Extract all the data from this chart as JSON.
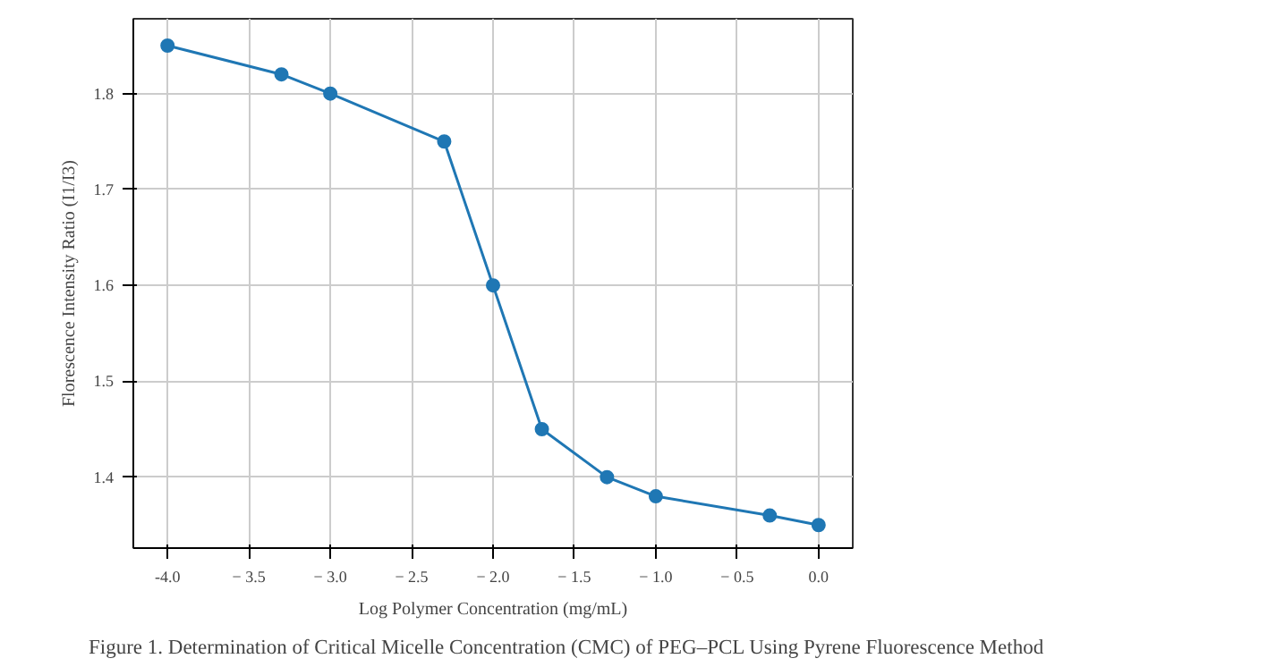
{
  "chart_data": {
    "type": "line",
    "xlabel": "Log Polymer Concentration (mg/mL)",
    "ylabel": "Florescence Intensity Ratio (I1/I3)",
    "x": [
      -4.0,
      -3.3,
      -3.0,
      -2.3,
      -2.0,
      -1.7,
      -1.3,
      -1.0,
      -0.3,
      0.0
    ],
    "series": [
      {
        "color": "#1f77b4",
        "values": [
          1.85,
          1.82,
          1.8,
          1.75,
          1.6,
          1.45,
          1.4,
          1.38,
          1.36,
          1.35
        ]
      }
    ],
    "xlim": [
      -4.21,
      0.21
    ],
    "ylim": [
      1.326,
      1.878
    ],
    "xticks": [
      {
        "value": -4.0,
        "label": "-4.0"
      },
      {
        "value": -3.5,
        "label": "− 3.5"
      },
      {
        "value": -3.0,
        "label": "− 3.0"
      },
      {
        "value": -2.5,
        "label": "− 2.5"
      },
      {
        "value": -2.0,
        "label": "− 2.0"
      },
      {
        "value": -1.5,
        "label": "− 1.5"
      },
      {
        "value": -1.0,
        "label": "− 1.0"
      },
      {
        "value": -0.5,
        "label": "− 0.5"
      },
      {
        "value": 0.0,
        "label": "0.0"
      }
    ],
    "yticks": [
      {
        "value": 1.4,
        "label": "1.4"
      },
      {
        "value": 1.5,
        "label": "1.5"
      },
      {
        "value": 1.6,
        "label": "1.6"
      },
      {
        "value": 1.7,
        "label": "1.7"
      },
      {
        "value": 1.8,
        "label": "1.8"
      }
    ],
    "grid": true,
    "marker": "circle",
    "line_style": "solid",
    "annotations": [
      "Figure 1. Determination of Critical Micelle Concentration (CMC) of PEG–PCL Using Pyrene Fluorescence Method"
    ]
  }
}
